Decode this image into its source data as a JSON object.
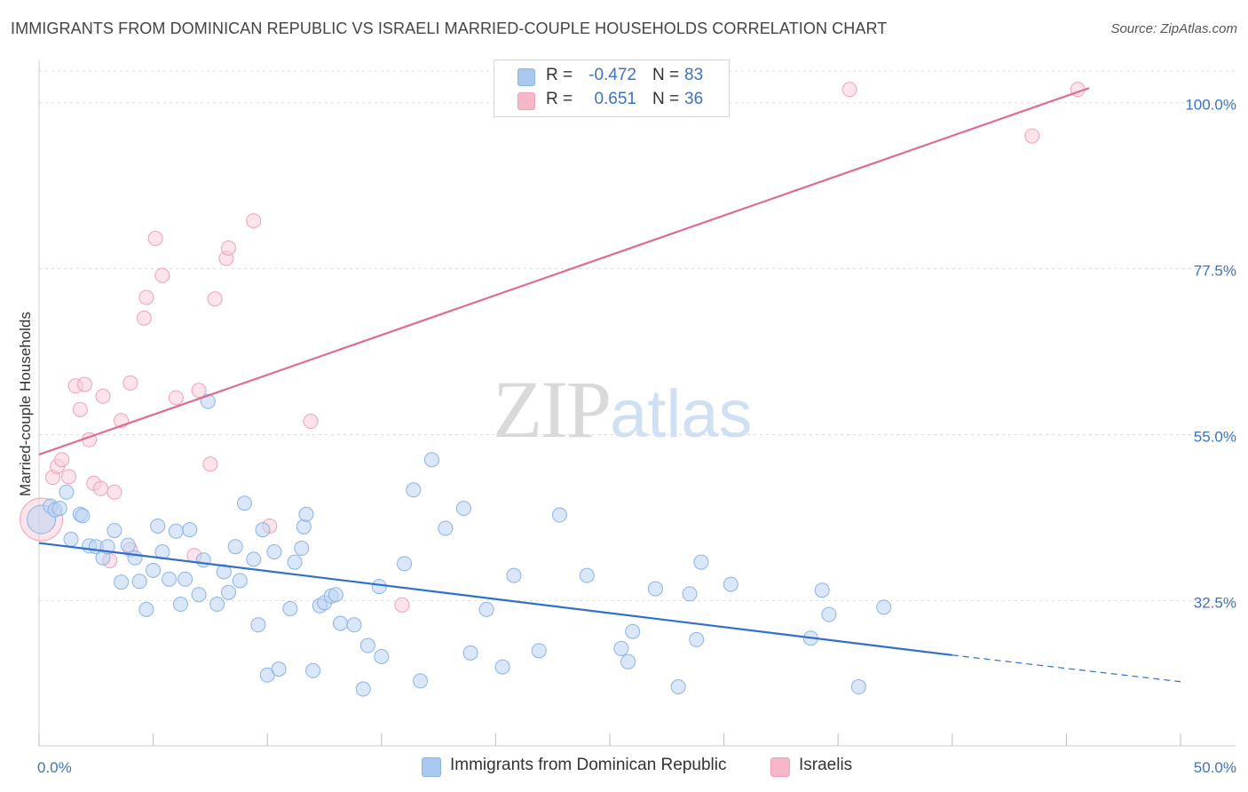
{
  "title": "IMMIGRANTS FROM DOMINICAN REPUBLIC VS ISRAELI MARRIED-COUPLE HOUSEHOLDS CORRELATION CHART",
  "source": "Source: ZipAtlas.com",
  "watermark": {
    "part1": "ZIP",
    "part2": "atlas"
  },
  "stats": [
    {
      "r_label": "R =",
      "r_value": "-0.472",
      "n_label": "N =",
      "n_value": "83",
      "color": "#a9c8ef"
    },
    {
      "r_label": "R =",
      "r_value": "0.651",
      "n_label": "N =",
      "n_value": "36",
      "color": "#f6b8c9"
    }
  ],
  "legend": [
    {
      "label": "Immigrants from Dominican Republic",
      "color": "#a9c8ef"
    },
    {
      "label": "Israelis",
      "color": "#f6b8c9"
    }
  ],
  "colors": {
    "blue_point": "#8ab3e6",
    "blue_fill": "#bcd4f2",
    "blue_line": "#2f6fce",
    "pink_point": "#f0a0b8",
    "pink_fill": "#f9cdd9",
    "pink_line": "#e06a93",
    "value_text": "#3b73c4",
    "grid": "#dddddd"
  },
  "chart_data": {
    "type": "scatter",
    "title": "IMMIGRANTS FROM DOMINICAN REPUBLIC VS ISRAELI MARRIED-COUPLE HOUSEHOLDS CORRELATION CHART",
    "xlabel": "",
    "ylabel": "Married-couple Households",
    "xlim": [
      0,
      50
    ],
    "ylim": [
      12.8,
      104.3
    ],
    "x_tick_labels": [
      {
        "value": 0,
        "label": "0.0%"
      },
      {
        "value": 50,
        "label": "50.0%"
      }
    ],
    "y_tick_labels": [
      {
        "value": 100,
        "label": "100.0%"
      },
      {
        "value": 77.5,
        "label": "77.5%"
      },
      {
        "value": 55,
        "label": "55.0%"
      },
      {
        "value": 32.5,
        "label": "32.5%"
      }
    ],
    "grid": true,
    "legend_position": "bottom",
    "series": [
      {
        "name": "Immigrants from Dominican Republic",
        "r": -0.472,
        "n": 83,
        "trend": {
          "x0": 0,
          "y0": 40.3,
          "x1": 40,
          "y1": 25.1,
          "dashed_to_x": 50,
          "dashed_y": 21.5
        },
        "points": [
          {
            "x": 0.1,
            "y": 43.5,
            "size": 16
          },
          {
            "x": 0.5,
            "y": 45.3
          },
          {
            "x": 0.7,
            "y": 44.8
          },
          {
            "x": 0.9,
            "y": 45.0
          },
          {
            "x": 1.2,
            "y": 47.2
          },
          {
            "x": 1.4,
            "y": 40.8
          },
          {
            "x": 1.8,
            "y": 44.2
          },
          {
            "x": 1.9,
            "y": 44.0
          },
          {
            "x": 2.2,
            "y": 39.9
          },
          {
            "x": 2.5,
            "y": 39.8
          },
          {
            "x": 2.8,
            "y": 38.3
          },
          {
            "x": 3.0,
            "y": 39.8
          },
          {
            "x": 3.3,
            "y": 42.0
          },
          {
            "x": 3.6,
            "y": 35.0
          },
          {
            "x": 3.9,
            "y": 40.0
          },
          {
            "x": 4.2,
            "y": 38.3
          },
          {
            "x": 4.4,
            "y": 35.1
          },
          {
            "x": 4.7,
            "y": 31.3
          },
          {
            "x": 5.0,
            "y": 36.6
          },
          {
            "x": 5.2,
            "y": 42.6
          },
          {
            "x": 5.4,
            "y": 39.1
          },
          {
            "x": 5.7,
            "y": 35.4
          },
          {
            "x": 6.0,
            "y": 41.9
          },
          {
            "x": 6.2,
            "y": 32.0
          },
          {
            "x": 6.4,
            "y": 35.4
          },
          {
            "x": 6.6,
            "y": 42.1
          },
          {
            "x": 7.0,
            "y": 33.3
          },
          {
            "x": 7.2,
            "y": 38.0
          },
          {
            "x": 7.4,
            "y": 59.5
          },
          {
            "x": 7.8,
            "y": 32.0
          },
          {
            "x": 8.1,
            "y": 36.4
          },
          {
            "x": 8.3,
            "y": 33.6
          },
          {
            "x": 8.6,
            "y": 39.8
          },
          {
            "x": 8.8,
            "y": 35.2
          },
          {
            "x": 9.0,
            "y": 45.7
          },
          {
            "x": 9.4,
            "y": 38.1
          },
          {
            "x": 9.6,
            "y": 29.2
          },
          {
            "x": 9.8,
            "y": 42.1
          },
          {
            "x": 10.0,
            "y": 22.4
          },
          {
            "x": 10.3,
            "y": 39.1
          },
          {
            "x": 10.5,
            "y": 23.2
          },
          {
            "x": 11.0,
            "y": 31.4
          },
          {
            "x": 11.2,
            "y": 37.7
          },
          {
            "x": 11.5,
            "y": 39.6
          },
          {
            "x": 11.6,
            "y": 42.5
          },
          {
            "x": 11.7,
            "y": 44.2
          },
          {
            "x": 12.0,
            "y": 23.0
          },
          {
            "x": 12.3,
            "y": 31.8
          },
          {
            "x": 12.5,
            "y": 32.2
          },
          {
            "x": 12.8,
            "y": 33.1
          },
          {
            "x": 13.0,
            "y": 33.3
          },
          {
            "x": 13.2,
            "y": 29.4
          },
          {
            "x": 13.8,
            "y": 29.2
          },
          {
            "x": 14.2,
            "y": 20.5
          },
          {
            "x": 14.4,
            "y": 26.4
          },
          {
            "x": 14.9,
            "y": 34.4
          },
          {
            "x": 15.0,
            "y": 24.9
          },
          {
            "x": 16.0,
            "y": 37.5
          },
          {
            "x": 16.4,
            "y": 47.5
          },
          {
            "x": 16.7,
            "y": 21.6
          },
          {
            "x": 17.2,
            "y": 51.6
          },
          {
            "x": 17.8,
            "y": 42.3
          },
          {
            "x": 18.6,
            "y": 45.0
          },
          {
            "x": 18.9,
            "y": 25.4
          },
          {
            "x": 19.6,
            "y": 31.3
          },
          {
            "x": 20.3,
            "y": 23.5
          },
          {
            "x": 20.8,
            "y": 35.9
          },
          {
            "x": 21.9,
            "y": 25.7
          },
          {
            "x": 22.8,
            "y": 44.1
          },
          {
            "x": 24.0,
            "y": 35.9
          },
          {
            "x": 25.5,
            "y": 26.0
          },
          {
            "x": 25.8,
            "y": 24.2
          },
          {
            "x": 26.0,
            "y": 28.3
          },
          {
            "x": 27.0,
            "y": 34.1
          },
          {
            "x": 28.0,
            "y": 20.8
          },
          {
            "x": 28.5,
            "y": 33.4
          },
          {
            "x": 28.8,
            "y": 27.2
          },
          {
            "x": 29.0,
            "y": 37.7
          },
          {
            "x": 30.3,
            "y": 34.7
          },
          {
            "x": 33.8,
            "y": 27.4
          },
          {
            "x": 34.3,
            "y": 33.9
          },
          {
            "x": 34.6,
            "y": 30.6
          },
          {
            "x": 35.9,
            "y": 20.8
          },
          {
            "x": 37.0,
            "y": 31.6
          }
        ]
      },
      {
        "name": "Israelis",
        "r": 0.651,
        "n": 36,
        "trend": {
          "x0": 0,
          "y0": 52.3,
          "x1": 46,
          "y1": 102.0
        },
        "points": [
          {
            "x": 0.1,
            "y": 43.5,
            "size": 24
          },
          {
            "x": 0.6,
            "y": 49.2
          },
          {
            "x": 0.8,
            "y": 50.7
          },
          {
            "x": 1.0,
            "y": 51.6
          },
          {
            "x": 1.3,
            "y": 49.3
          },
          {
            "x": 1.6,
            "y": 61.6
          },
          {
            "x": 1.8,
            "y": 58.4
          },
          {
            "x": 2.0,
            "y": 61.8
          },
          {
            "x": 2.2,
            "y": 54.3
          },
          {
            "x": 2.4,
            "y": 48.4
          },
          {
            "x": 2.7,
            "y": 47.7
          },
          {
            "x": 2.8,
            "y": 60.2
          },
          {
            "x": 3.1,
            "y": 37.9
          },
          {
            "x": 3.3,
            "y": 47.2
          },
          {
            "x": 3.6,
            "y": 56.9
          },
          {
            "x": 4.0,
            "y": 39.4
          },
          {
            "x": 4.0,
            "y": 62.0
          },
          {
            "x": 4.6,
            "y": 70.8
          },
          {
            "x": 4.7,
            "y": 73.6
          },
          {
            "x": 5.1,
            "y": 81.6
          },
          {
            "x": 5.4,
            "y": 76.6
          },
          {
            "x": 6.0,
            "y": 60.0
          },
          {
            "x": 6.8,
            "y": 38.6
          },
          {
            "x": 7.0,
            "y": 61.0
          },
          {
            "x": 7.5,
            "y": 51.0
          },
          {
            "x": 7.7,
            "y": 73.4
          },
          {
            "x": 8.2,
            "y": 78.9
          },
          {
            "x": 8.3,
            "y": 80.3
          },
          {
            "x": 9.4,
            "y": 84.0
          },
          {
            "x": 10.1,
            "y": 42.6
          },
          {
            "x": 11.9,
            "y": 56.8
          },
          {
            "x": 15.9,
            "y": 31.9
          },
          {
            "x": 35.5,
            "y": 101.8
          },
          {
            "x": 45.5,
            "y": 101.8
          },
          {
            "x": 43.5,
            "y": 95.5
          }
        ]
      }
    ]
  }
}
